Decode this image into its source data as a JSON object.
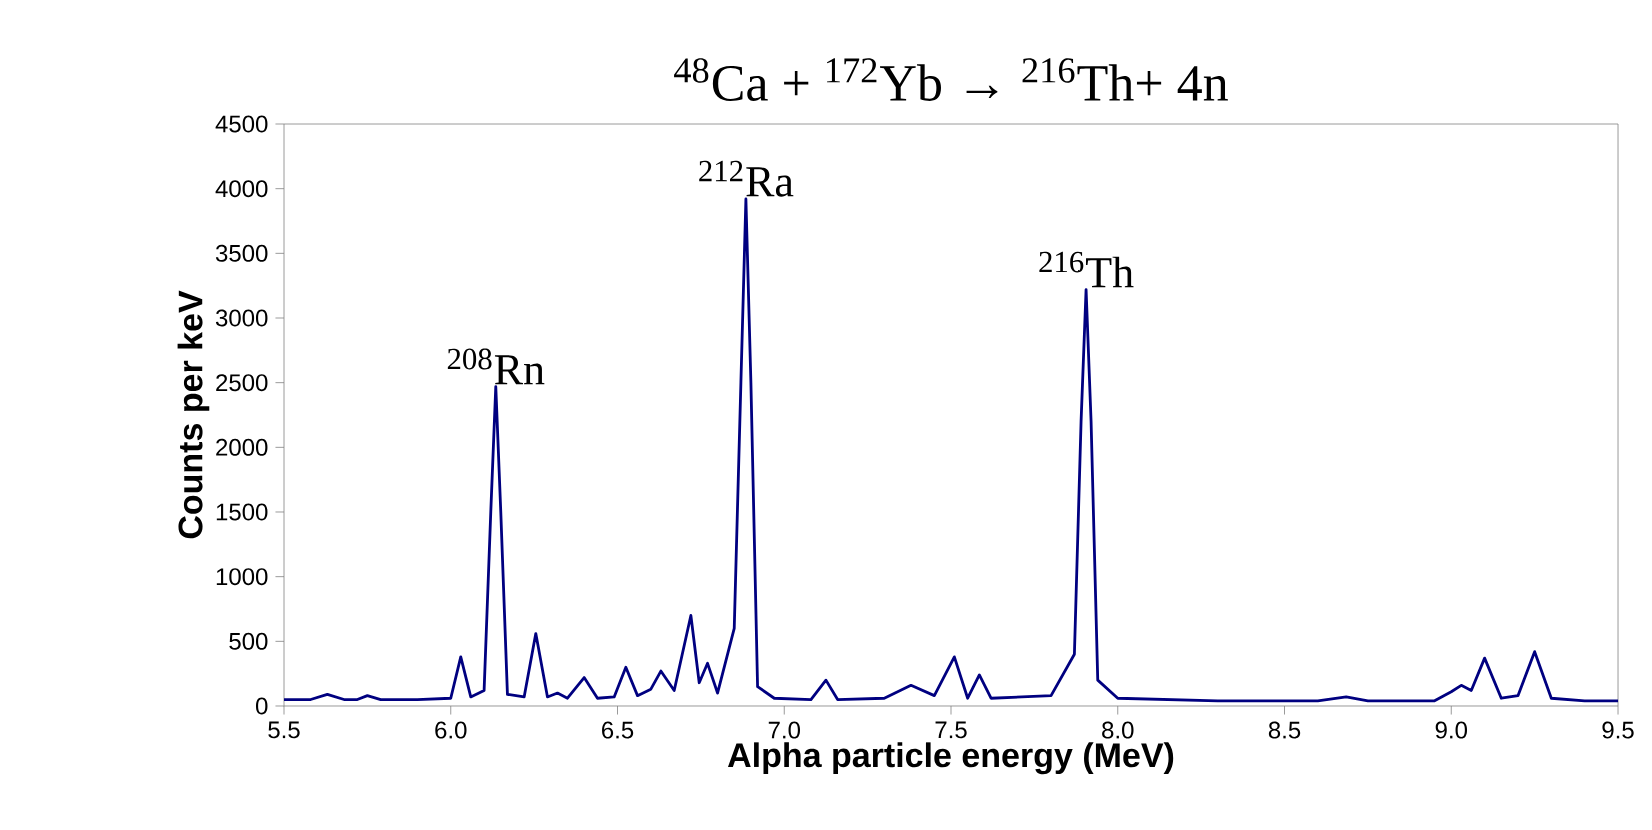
{
  "chart_data": {
    "type": "line",
    "title": "$^{48}$Ca + $^{172}$Yb → $^{216}$Th+ 4n",
    "xlabel": "Alpha particle energy (MeV)",
    "ylabel": "Counts per keV",
    "xlim": [
      5.5,
      9.5
    ],
    "ylim": [
      0,
      4500
    ],
    "xticks": [
      5.5,
      {
        "value": 6,
        "label": "6.0"
      },
      6.5,
      {
        "value": 7,
        "label": "7.0"
      },
      7.5,
      {
        "value": 8,
        "label": "8.0"
      },
      8.5,
      {
        "value": 9,
        "label": "9.0"
      },
      9.5
    ],
    "yticks": [
      0,
      500,
      1000,
      1500,
      2000,
      2500,
      3000,
      3500,
      4000,
      4500
    ],
    "grid": false,
    "marker": "none",
    "line_style": "solid",
    "annotations": [
      {
        "text": "$^{208}$Rn",
        "x": 6.135,
        "y": 2470
      },
      {
        "text": "$^{212}$Ra",
        "x": 6.885,
        "y": 3920
      },
      {
        "text": "$^{216}$Th",
        "x": 7.905,
        "y": 3220
      }
    ],
    "series": [
      {
        "color": "#000080",
        "x": [
          5.5,
          5.58,
          5.63,
          5.68,
          5.72,
          5.75,
          5.79,
          5.9,
          6.0,
          6.03,
          6.06,
          6.1,
          6.12,
          6.135,
          6.15,
          6.17,
          6.22,
          6.255,
          6.29,
          6.32,
          6.35,
          6.4,
          6.44,
          6.49,
          6.525,
          6.56,
          6.6,
          6.63,
          6.67,
          6.72,
          6.745,
          6.77,
          6.8,
          6.85,
          6.87,
          6.885,
          6.9,
          6.92,
          6.97,
          7.08,
          7.125,
          7.16,
          7.3,
          7.38,
          7.45,
          7.51,
          7.55,
          7.585,
          7.62,
          7.8,
          7.87,
          7.89,
          7.905,
          7.92,
          7.94,
          8.0,
          8.3,
          8.6,
          8.685,
          8.75,
          8.95,
          9.0,
          9.03,
          9.06,
          9.1,
          9.15,
          9.2,
          9.25,
          9.3,
          9.4,
          9.5
        ],
        "values": [
          50,
          50,
          90,
          50,
          50,
          80,
          50,
          50,
          60,
          380,
          70,
          120,
          1500,
          2470,
          1500,
          90,
          70,
          560,
          70,
          100,
          60,
          220,
          60,
          70,
          300,
          80,
          130,
          270,
          120,
          700,
          180,
          330,
          100,
          600,
          2500,
          3920,
          2500,
          150,
          60,
          50,
          200,
          50,
          60,
          160,
          80,
          380,
          60,
          240,
          60,
          80,
          400,
          2200,
          3220,
          2200,
          200,
          60,
          40,
          40,
          70,
          40,
          40,
          110,
          160,
          120,
          370,
          60,
          80,
          420,
          60,
          40,
          40
        ]
      }
    ]
  }
}
